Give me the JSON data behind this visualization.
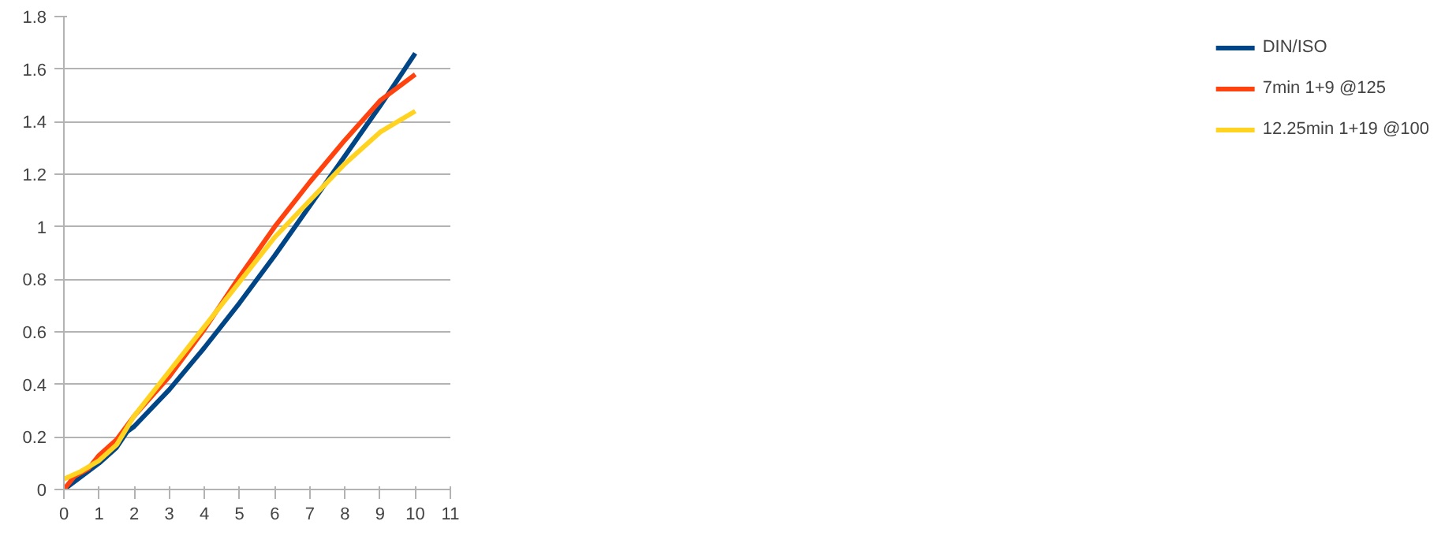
{
  "chart_data": {
    "type": "line",
    "xlim": [
      0,
      11
    ],
    "xticks": [
      0,
      1,
      2,
      3,
      4,
      5,
      6,
      7,
      8,
      9,
      10,
      11
    ],
    "ylim": [
      0,
      1.8
    ],
    "yticks": [
      0,
      0.2,
      0.4,
      0.6,
      0.8,
      1,
      1.2,
      1.4,
      1.6,
      1.8
    ],
    "grid": "y",
    "legend": "right",
    "marker": "none",
    "line_style": "solid",
    "series": [
      {
        "name": "DIN/ISO",
        "color": "#004586",
        "x": [
          0,
          0.5,
          1,
          1.5,
          1.8,
          2,
          3,
          4,
          5,
          6,
          7,
          8,
          9,
          10
        ],
        "values": [
          0,
          0.05,
          0.1,
          0.16,
          0.22,
          0.24,
          0.38,
          0.54,
          0.71,
          0.89,
          1.08,
          1.27,
          1.46,
          1.66
        ]
      },
      {
        "name": "7min 1+9 @125",
        "color": "#ff420e",
        "x": [
          0,
          0.3,
          0.7,
          1,
          1.5,
          2,
          3,
          4,
          5,
          6,
          7,
          8,
          9,
          10
        ],
        "values": [
          0,
          0.05,
          0.08,
          0.13,
          0.19,
          0.28,
          0.43,
          0.61,
          0.81,
          1.0,
          1.17,
          1.33,
          1.48,
          1.58
        ]
      },
      {
        "name": "12.25min 1+19 @100",
        "color": "#ffd320",
        "x": [
          0,
          0.5,
          1,
          1.5,
          2,
          3,
          4,
          5,
          6,
          7,
          8,
          9,
          10
        ],
        "values": [
          0.04,
          0.07,
          0.11,
          0.17,
          0.28,
          0.45,
          0.62,
          0.79,
          0.96,
          1.1,
          1.24,
          1.36,
          1.44
        ]
      }
    ]
  }
}
